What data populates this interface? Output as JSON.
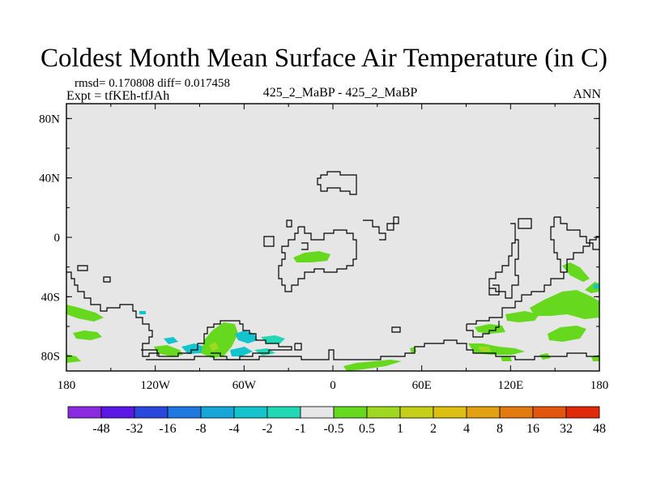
{
  "title": "Coldest Month Mean Surface Air Temperature (in C)",
  "stats_line": "rmsd= 0.170808 diff= 0.017458",
  "expt_line": "Expt = tfKEh-tfJAh",
  "experiment_names": "425_2_MaBP - 425_2_MaBP",
  "season": "ANN",
  "axes": {
    "y_tick_labels": [
      "80N",
      "40N",
      "0",
      "40S",
      "80S"
    ],
    "y_tick_values": [
      80,
      40,
      0,
      -40,
      -80
    ],
    "x_tick_labels": [
      "180",
      "120W",
      "60W",
      "0",
      "60E",
      "120E",
      "180"
    ],
    "x_tick_values": [
      -180,
      -120,
      -60,
      0,
      60,
      120,
      180
    ]
  },
  "colorbar": {
    "colors": [
      "#8a2be2",
      "#5b17e6",
      "#2a48dc",
      "#1f77e0",
      "#17a6d8",
      "#14c4cc",
      "#22d8b4",
      "#e6e6e6",
      "#66d81e",
      "#9ed820",
      "#c6cf18",
      "#dcbf10",
      "#e3a010",
      "#e37a10",
      "#e3560e",
      "#e02a0a"
    ],
    "labels": [
      "-48",
      "-32",
      "-16",
      "-8",
      "-4",
      "-2",
      "-1",
      "-0.5",
      "0.5",
      "1",
      "2",
      "4",
      "8",
      "16",
      "32",
      "48"
    ]
  },
  "palette": {
    "background": "#e6e6e6",
    "teal": "#22d8b4",
    "cyan": "#14c4cc",
    "green": "#66d81e",
    "light_green": "#9ed820",
    "olive": "#c6cf18"
  }
}
